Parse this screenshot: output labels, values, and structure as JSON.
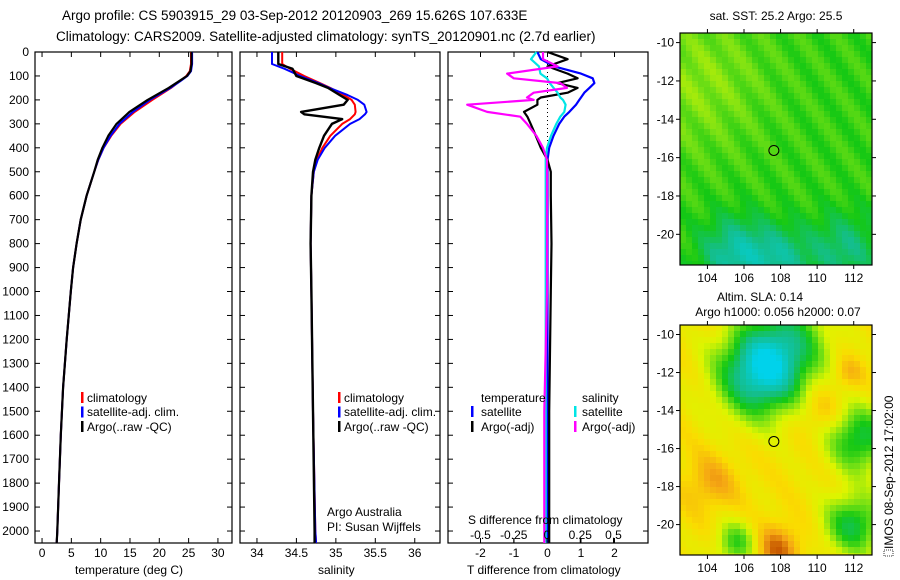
{
  "header": {
    "title_line1": "Argo profile: CS 5903915_29 03-Sep-2012 20120903_269 15.626S 107.633E",
    "title_line2": "Climatology: CARS2009. Satellite-adjusted climatology: synTS_20120901.nc (2.7d earlier)"
  },
  "colors": {
    "climatology": "#ff0000",
    "satellite": "#0000ff",
    "argo": "#000000",
    "sal_satellite": "#00e5e5",
    "sal_argo": "#ff00ff"
  },
  "chart_data": [
    {
      "type": "line",
      "name": "temperature-profile",
      "xlabel": "temperature (deg C)",
      "ylabel": "",
      "xlim": [
        -1.2,
        32.4
      ],
      "ylim": [
        2050,
        0
      ],
      "xticks": [
        0,
        5,
        10,
        15,
        20,
        25,
        30
      ],
      "yticks": [
        0,
        100,
        200,
        300,
        400,
        500,
        600,
        700,
        800,
        900,
        1000,
        1100,
        1200,
        1300,
        1400,
        1500,
        1600,
        1700,
        1800,
        1900,
        2000
      ],
      "legend": [
        "climatology",
        "satellite-adj. clim.",
        "Argo(..raw -QC)"
      ],
      "depth": [
        0,
        50,
        80,
        100,
        120,
        150,
        200,
        250,
        300,
        350,
        400,
        450,
        500,
        600,
        700,
        800,
        900,
        1000,
        1200,
        1400,
        1600,
        1800,
        2000,
        2050
      ],
      "series": [
        {
          "name": "climatology",
          "color": "#ff0000",
          "values": [
            25.4,
            25.4,
            25.2,
            24.6,
            23.6,
            22.0,
            18.8,
            15.8,
            13.4,
            11.8,
            10.5,
            9.6,
            8.9,
            7.6,
            6.6,
            5.9,
            5.3,
            4.9,
            4.2,
            3.6,
            3.2,
            2.9,
            2.6,
            2.5
          ]
        },
        {
          "name": "satellite-adj. clim.",
          "color": "#0000ff",
          "values": [
            25.6,
            25.6,
            25.4,
            24.8,
            23.7,
            21.9,
            18.4,
            15.5,
            13.2,
            11.7,
            10.5,
            9.6,
            8.9,
            7.6,
            6.6,
            5.9,
            5.3,
            4.9,
            4.2,
            3.6,
            3.2,
            2.9,
            2.6,
            2.5
          ]
        },
        {
          "name": "Argo(..raw -QC)",
          "color": "#000000",
          "values": [
            25.5,
            25.5,
            25.3,
            24.7,
            23.5,
            21.6,
            18.0,
            14.9,
            12.7,
            11.3,
            10.3,
            9.5,
            8.9,
            7.6,
            6.6,
            5.9,
            5.3,
            4.9,
            4.2,
            3.6,
            3.2,
            2.9,
            2.6,
            2.5
          ]
        }
      ]
    },
    {
      "type": "line",
      "name": "salinity-profile",
      "xlabel": "salinity",
      "xlim": [
        33.785,
        36.32
      ],
      "ylim": [
        2050,
        0
      ],
      "xticks": [
        34,
        34.5,
        35,
        35.5,
        36
      ],
      "legend": [
        "climatology",
        "satellite-adj. clim.",
        "Argo(..raw -QC)"
      ],
      "annotation": [
        "Argo Australia",
        "PI: Susan Wijffels"
      ],
      "depth": [
        0,
        50,
        70,
        100,
        130,
        150,
        180,
        200,
        220,
        250,
        260,
        280,
        300,
        350,
        400,
        450,
        500,
        600,
        800,
        1000,
        1500,
        2000,
        2050
      ],
      "series": [
        {
          "name": "climatology",
          "color": "#ff0000",
          "values": [
            34.32,
            34.32,
            34.42,
            34.6,
            34.8,
            34.93,
            35.1,
            35.2,
            35.24,
            35.25,
            35.24,
            35.18,
            35.08,
            34.93,
            34.83,
            34.76,
            34.72,
            34.69,
            34.68,
            34.69,
            34.71,
            34.74,
            34.75
          ]
        },
        {
          "name": "satellite-adj. clim.",
          "color": "#0000ff",
          "values": [
            34.19,
            34.19,
            34.35,
            34.55,
            34.78,
            34.92,
            35.15,
            35.28,
            35.36,
            35.39,
            35.37,
            35.3,
            35.18,
            34.99,
            34.86,
            34.77,
            34.72,
            34.69,
            34.68,
            34.69,
            34.71,
            34.74,
            34.75
          ]
        },
        {
          "name": "Argo(..raw -QC)",
          "color": "#000000",
          "values": [
            34.27,
            34.27,
            34.45,
            34.5,
            34.75,
            34.9,
            35.05,
            35.15,
            35.1,
            34.56,
            34.6,
            35.08,
            34.95,
            34.85,
            34.79,
            34.74,
            34.71,
            34.69,
            34.68,
            34.69,
            34.71,
            34.73,
            34.73
          ]
        }
      ]
    },
    {
      "type": "line",
      "name": "difference-profile",
      "xlabel": "T difference from climatology",
      "xlabel_s": "S difference from climatology",
      "xlim": [
        -2.97,
        3.0
      ],
      "xticks": [
        -2,
        -1,
        0,
        1,
        2
      ],
      "xticks_s": [
        -0.5,
        -0.25,
        0,
        0.25,
        0.5
      ],
      "xtick_labels_s": [
        "-0.5",
        "-0.25",
        "0",
        "0.25",
        "0.5"
      ],
      "legend_temperature_title": "temperature",
      "legend_salinity_title": "salinity",
      "legend": [
        "satellite",
        "Argo(-adj)",
        "satellite",
        "Argo(-adj)"
      ],
      "depth": [
        0,
        30,
        60,
        90,
        110,
        130,
        150,
        170,
        190,
        200,
        220,
        250,
        270,
        300,
        350,
        400,
        450,
        500,
        600,
        800,
        1000,
        1500,
        2000,
        2050
      ],
      "series": [
        {
          "name": "temperature satellite",
          "quantity": "T",
          "color": "#0000ff",
          "values": [
            -0.3,
            -0.2,
            0.2,
            1.0,
            1.35,
            1.4,
            1.25,
            1.1,
            1.0,
            0.95,
            0.85,
            0.65,
            0.5,
            0.35,
            0.18,
            0.05,
            0.0,
            0.0,
            0.0,
            0.0,
            0.0,
            0.0,
            0.0,
            0.0
          ]
        },
        {
          "name": "temperature Argo(-adj)",
          "quantity": "T",
          "color": "#000000",
          "values": [
            0.0,
            0.6,
            0.0,
            0.6,
            0.9,
            0.3,
            0.9,
            0.6,
            -0.2,
            -0.3,
            -0.3,
            -0.7,
            -0.6,
            -0.5,
            -0.35,
            -0.2,
            0.0,
            0.1,
            0.1,
            0.12,
            0.1,
            0.05,
            0.05,
            0.05
          ]
        },
        {
          "name": "salinity satellite",
          "quantity": "S",
          "color": "#00e5e5",
          "values": [
            -0.08,
            -0.12,
            -0.06,
            -0.05,
            0.0,
            0.02,
            0.05,
            0.08,
            0.1,
            0.12,
            0.14,
            0.13,
            0.1,
            0.07,
            0.03,
            0.0,
            -0.01,
            -0.01,
            -0.01,
            -0.01,
            -0.01,
            -0.01,
            -0.01,
            -0.01
          ]
        },
        {
          "name": "salinity Argo(-adj)",
          "quantity": "S",
          "color": "#ff00ff",
          "values": [
            -0.03,
            -0.03,
            0.08,
            -0.3,
            -0.25,
            0.1,
            0.15,
            -0.1,
            -0.15,
            -0.1,
            -0.6,
            -0.45,
            -0.2,
            -0.15,
            -0.08,
            -0.03,
            0.0,
            0.0,
            0.0,
            0.0,
            0.0,
            -0.02,
            -0.02,
            -0.02
          ]
        }
      ]
    },
    {
      "type": "heatmap",
      "name": "sst-map",
      "title": "sat. SST: 25.2 Argo: 25.5",
      "xlim": [
        102.5,
        113
      ],
      "ylim": [
        -21.6,
        -9.5
      ],
      "xticks": [
        104,
        106,
        108,
        110,
        112
      ],
      "yticks": [
        -10,
        -12,
        -14,
        -16,
        -18,
        -20
      ],
      "float_position": [
        107.633,
        -15.626
      ]
    },
    {
      "type": "heatmap",
      "name": "sla-map",
      "title_line1": "Altim. SLA: 0.14",
      "title_line2": "Argo h1000: 0.056 h2000: 0.07",
      "xlim": [
        102.5,
        113
      ],
      "ylim": [
        -21.6,
        -9.5
      ],
      "xticks": [
        104,
        106,
        108,
        110,
        112
      ],
      "yticks": [
        -10,
        -12,
        -14,
        -16,
        -18,
        -20
      ],
      "float_position": [
        107.633,
        -15.626
      ]
    }
  ],
  "footer": {
    "stamp": "IMOS 08-Sep-2012 17:02:00"
  }
}
